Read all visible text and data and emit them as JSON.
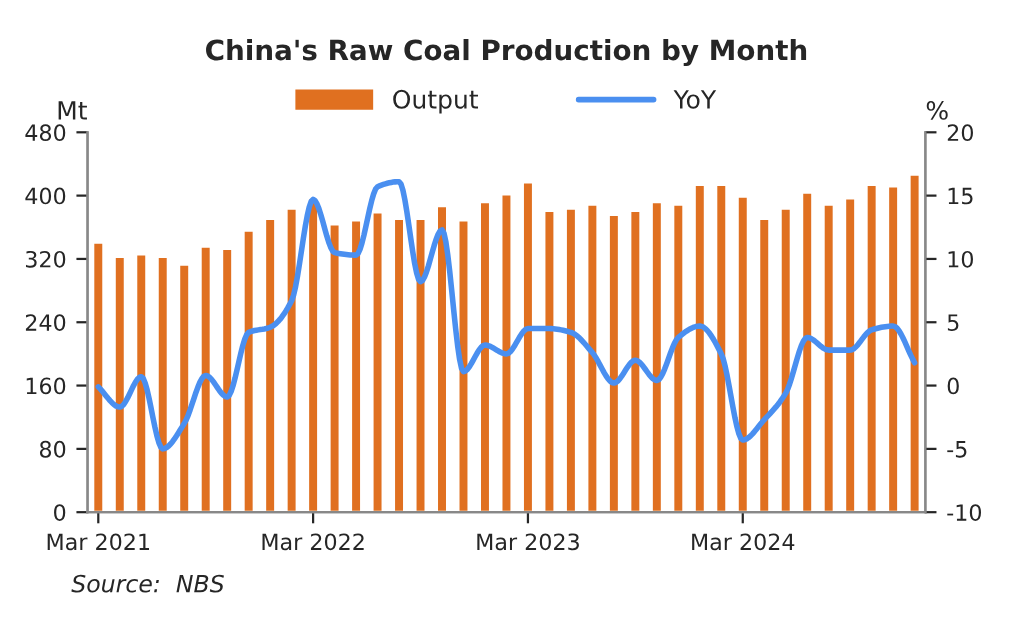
{
  "chart_data": {
    "type": "bar",
    "title": "China's Raw Coal Production by Month",
    "categories": [
      "Mar 2021",
      null,
      null,
      null,
      null,
      null,
      null,
      null,
      null,
      null,
      "Mar 2022",
      null,
      null,
      null,
      null,
      null,
      null,
      null,
      null,
      null,
      "Mar 2023",
      null,
      null,
      null,
      null,
      null,
      null,
      null,
      null,
      null,
      "Mar 2024",
      null,
      null,
      null,
      null,
      null,
      null,
      null,
      null
    ],
    "series": [
      {
        "name": "Output",
        "color": "#e07020",
        "values": [
          341,
          323,
          326,
          323,
          313,
          336,
          333,
          356,
          371,
          384,
          397,
          364,
          369,
          379,
          371,
          371,
          387,
          369,
          392,
          402,
          417,
          381,
          384,
          389,
          376,
          381,
          392,
          389,
          414,
          414,
          399,
          371,
          384,
          404,
          389,
          397,
          414,
          412,
          427
        ]
      },
      {
        "name": "YoY",
        "type": "line",
        "axis": "y2",
        "color": "#4a8ff0",
        "values": [
          -0.1,
          -1.7,
          0.7,
          -5.0,
          -3.0,
          0.8,
          -0.9,
          4.2,
          4.6,
          6.7,
          14.7,
          10.5,
          10.3,
          15.7,
          16.1,
          8.2,
          12.3,
          1.1,
          3.2,
          2.5,
          4.5,
          4.5,
          4.2,
          2.6,
          0.2,
          2.0,
          0.4,
          3.8,
          4.7,
          2.5,
          -4.3,
          -2.7,
          -0.6,
          3.8,
          2.8,
          2.8,
          4.4,
          4.7,
          1.8
        ]
      }
    ],
    "ylabel": "Mt",
    "y2label": "%",
    "ylim": [
      0,
      480
    ],
    "yticks": [
      0,
      80,
      160,
      240,
      320,
      400,
      480
    ],
    "y2lim": [
      -10,
      20
    ],
    "y2ticks": [
      -10,
      -5,
      0,
      5,
      10,
      15,
      20
    ],
    "legend": "top",
    "grid": false,
    "annotations": [
      "Source:  NBS"
    ]
  }
}
